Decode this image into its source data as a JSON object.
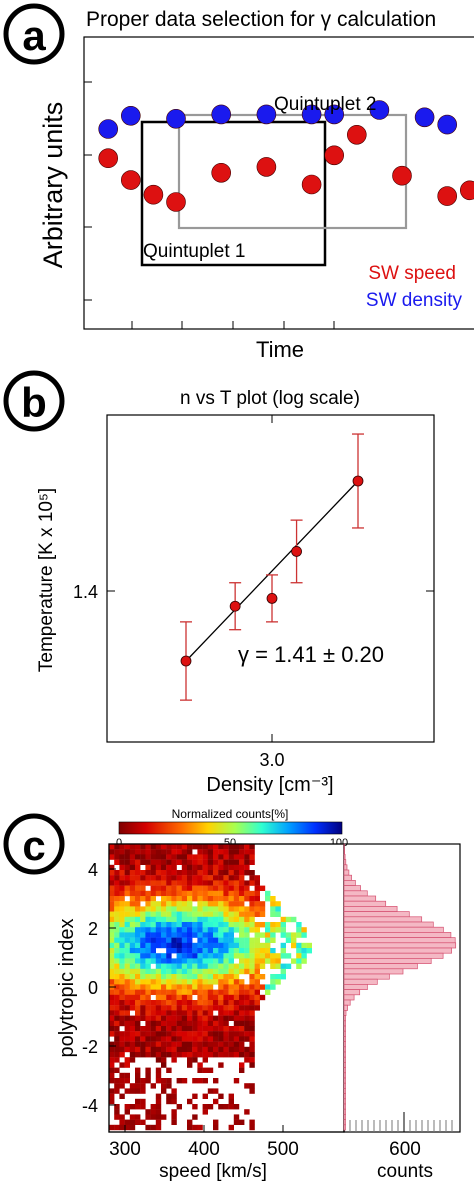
{
  "panel_a": {
    "badge": "a",
    "title": "Proper data selection for γ calculation",
    "xlabel": "Time",
    "ylabel": "Arbitrary units",
    "quint1": "Quintuplet 1",
    "quint2": "Quintuplet 2",
    "legend_speed": "SW speed",
    "legend_density": "SW density"
  },
  "panel_b": {
    "badge": "b",
    "title": "n vs T plot (log scale)",
    "xlabel": "Density [cm⁻³]",
    "ylabel": "Temperature [K x 10⁵]",
    "xtick": "3.0",
    "ytick": "1.4",
    "annotation": "γ = 1.41 ± 0.20"
  },
  "panel_c": {
    "badge": "c",
    "colorbar_title": "Normalized counts[%]",
    "colorbar_ticks": [
      "0",
      "50",
      "100"
    ],
    "xlabel": "speed [km/s]",
    "ylabel": "polytropic index",
    "xticks": [
      "300",
      "400",
      "500"
    ],
    "yticks": [
      "4",
      "2",
      "0",
      "-2",
      "-4"
    ],
    "hist_xtick": "600",
    "hist_xlabel": "counts"
  },
  "colors": {
    "speed": "#dd1111",
    "density": "#1a1aee",
    "box1": "#000000",
    "box2": "#999999",
    "errorbar": "#cc3333",
    "hist": "#f4b8c4",
    "hist_edge": "#d55070"
  },
  "chart_data": [
    {
      "type": "scatter",
      "title": "Proper data selection for γ calculation",
      "xlabel": "Time",
      "ylabel": "Arbitrary units",
      "x": [
        1,
        2,
        3,
        4,
        5,
        6,
        7,
        8,
        9,
        10,
        11,
        12,
        13,
        14,
        15,
        16,
        17,
        18,
        19
      ],
      "series": [
        {
          "name": "SW speed",
          "values": [
            5.4,
            6.0,
            5.85,
            5.1,
            4.6,
            4.35,
            null,
            5.35,
            null,
            5.55,
            null,
            4.95,
            5.95,
            6.65,
            null,
            5.25,
            null,
            4.55,
            4.75
          ]
        },
        {
          "name": "SW density",
          "values": [
            7.2,
            7.2,
            6.85,
            7.3,
            null,
            7.2,
            null,
            7.35,
            null,
            7.35,
            null,
            7.35,
            7.35,
            null,
            7.5,
            null,
            7.25,
            7.0,
            null
          ]
        }
      ],
      "ylim": [
        0,
        10
      ],
      "boxes": [
        {
          "name": "Quintuplet 1",
          "x_range": [
            2.6,
            9.4
          ]
        },
        {
          "name": "Quintuplet 2",
          "x_range": [
            4.4,
            12.0
          ]
        }
      ]
    },
    {
      "type": "scatter",
      "title": "n vs T plot (log scale)",
      "xlabel": "Density [cm⁻³]",
      "ylabel": "Temperature [K x 10⁵]",
      "x": [
        2.65,
        2.85,
        3.0,
        3.1,
        3.35
      ],
      "y": [
        1.32,
        1.39,
        1.4,
        1.46,
        1.55
      ],
      "errors": [
        0.05,
        0.03,
        0.03,
        0.04,
        0.06
      ],
      "fit": {
        "gamma": 1.41,
        "gamma_err": 0.2
      }
    },
    {
      "type": "heatmap",
      "xlabel": "speed [km/s]",
      "ylabel": "polytropic index",
      "xlim": [
        290,
        560
      ],
      "ylim": [
        -5.2,
        5.2
      ],
      "colorbar": {
        "label": "Normalized counts[%]",
        "range": [
          0,
          100
        ]
      },
      "histogram": {
        "xlabel": "counts",
        "tick": 600,
        "peak_y": 1.6
      }
    }
  ]
}
